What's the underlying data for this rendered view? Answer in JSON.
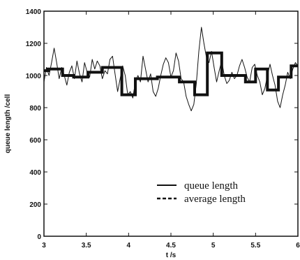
{
  "chart_data": {
    "type": "line",
    "title": "",
    "xlabel": "t /s",
    "ylabel": "queue length /cell",
    "xlim": [
      3,
      6
    ],
    "ylim": [
      0,
      1400
    ],
    "xticks": [
      "3",
      "3.5",
      "4",
      "4.5",
      "5",
      "5.5",
      "6"
    ],
    "yticks": [
      "0",
      "200",
      "400",
      "600",
      "800",
      "1000",
      "1200",
      "1400"
    ],
    "grid": false,
    "legend_position": "lower-right",
    "series": [
      {
        "name": "queue length",
        "style": "solid-thin",
        "x": [
          3.0,
          3.03,
          3.06,
          3.09,
          3.12,
          3.15,
          3.18,
          3.21,
          3.24,
          3.27,
          3.3,
          3.33,
          3.36,
          3.39,
          3.42,
          3.45,
          3.48,
          3.51,
          3.54,
          3.57,
          3.6,
          3.63,
          3.66,
          3.69,
          3.72,
          3.75,
          3.78,
          3.81,
          3.84,
          3.87,
          3.9,
          3.93,
          3.96,
          3.99,
          4.02,
          4.05,
          4.08,
          4.11,
          4.14,
          4.17,
          4.2,
          4.23,
          4.26,
          4.29,
          4.32,
          4.35,
          4.38,
          4.41,
          4.44,
          4.47,
          4.5,
          4.53,
          4.56,
          4.59,
          4.62,
          4.65,
          4.68,
          4.71,
          4.74,
          4.77,
          4.8,
          4.83,
          4.86,
          4.89,
          4.92,
          4.95,
          4.98,
          5.01,
          5.04,
          5.07,
          5.1,
          5.13,
          5.16,
          5.19,
          5.22,
          5.25,
          5.28,
          5.31,
          5.34,
          5.37,
          5.4,
          5.43,
          5.46,
          5.49,
          5.52,
          5.55,
          5.58,
          5.61,
          5.64,
          5.67,
          5.7,
          5.73,
          5.76,
          5.79,
          5.82,
          5.85,
          5.88,
          5.91,
          5.94,
          5.97,
          6.0
        ],
        "y": [
          960,
          1050,
          1000,
          1080,
          1170,
          1080,
          980,
          1050,
          1000,
          940,
          1020,
          1060,
          980,
          1090,
          1010,
          960,
          1080,
          1020,
          990,
          1100,
          1040,
          1090,
          1060,
          980,
          1030,
          1010,
          1100,
          1120,
          1010,
          900,
          980,
          1060,
          1000,
          880,
          900,
          860,
          960,
          1000,
          960,
          1120,
          1040,
          960,
          1010,
          900,
          870,
          920,
          1000,
          1070,
          1110,
          1080,
          990,
          1030,
          1140,
          1090,
          980,
          960,
          870,
          820,
          780,
          820,
          950,
          1150,
          1300,
          1200,
          1110,
          1080,
          1150,
          1050,
          960,
          1030,
          1090,
          1000,
          950,
          970,
          1020,
          980,
          1000,
          1060,
          1100,
          1050,
          990,
          960,
          1050,
          1070,
          1000,
          960,
          880,
          920,
          1000,
          1070,
          1000,
          940,
          840,
          800,
          880,
          940,
          1020,
          980,
          1040,
          1080,
          1060
        ]
      },
      {
        "name": "average length",
        "style": "thick-step",
        "x": [
          3.0,
          3.05,
          3.05,
          3.22,
          3.22,
          3.35,
          3.35,
          3.52,
          3.52,
          3.69,
          3.69,
          3.92,
          3.92,
          4.08,
          4.08,
          4.34,
          4.34,
          4.6,
          4.6,
          4.78,
          4.78,
          4.93,
          4.93,
          5.1,
          5.1,
          5.38,
          5.38,
          5.5,
          5.5,
          5.64,
          5.64,
          5.77,
          5.77,
          5.92,
          5.92,
          6.0
        ],
        "y": [
          1030,
          1030,
          1040,
          1040,
          1000,
          1000,
          990,
          990,
          1020,
          1020,
          1050,
          1050,
          880,
          880,
          980,
          980,
          990,
          990,
          960,
          960,
          880,
          880,
          1140,
          1140,
          1000,
          1000,
          960,
          960,
          1040,
          1040,
          910,
          910,
          990,
          990,
          1060,
          1060
        ]
      }
    ]
  }
}
